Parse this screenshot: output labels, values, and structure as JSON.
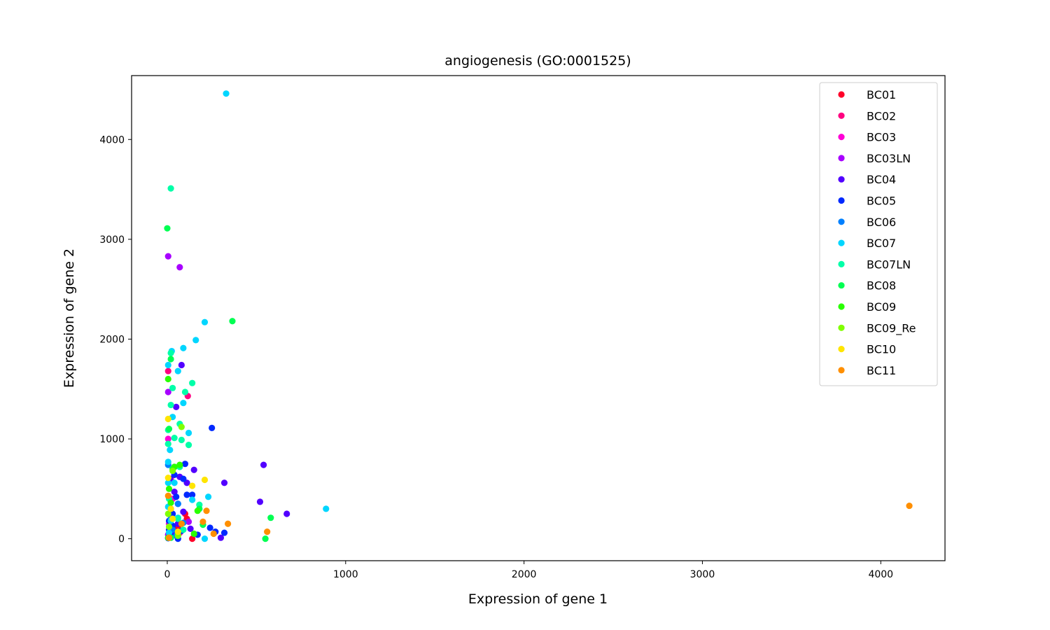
{
  "chart_data": {
    "type": "scatter",
    "title": "angiogenesis (GO:0001525)",
    "xlabel": "Expression of gene 1",
    "ylabel": "Expression of gene 2",
    "xlim": [
      -200,
      4360
    ],
    "ylim": [
      -220,
      4640
    ],
    "xticks": [
      0,
      1000,
      2000,
      3000,
      4000
    ],
    "yticks": [
      0,
      1000,
      2000,
      3000,
      4000
    ],
    "grid": false,
    "legend_position": "top-right",
    "series": [
      {
        "name": "BC01",
        "color": "#ff0029",
        "points": [
          [
            100,
            250
          ],
          [
            140,
            0
          ],
          [
            110,
            200
          ],
          [
            60,
            120
          ]
        ]
      },
      {
        "name": "BC02",
        "color": "#ff0080",
        "points": [
          [
            5,
            1680
          ],
          [
            115,
            1430
          ],
          [
            20,
            250
          ],
          [
            70,
            60
          ]
        ]
      },
      {
        "name": "BC03",
        "color": "#ff00d6",
        "points": [
          [
            5,
            1000
          ],
          [
            20,
            600
          ],
          [
            10,
            150
          ],
          [
            30,
            400
          ]
        ]
      },
      {
        "name": "BC03LN",
        "color": "#a800ff",
        "points": [
          [
            5,
            2830
          ],
          [
            70,
            2720
          ],
          [
            5,
            1470
          ],
          [
            120,
            170
          ],
          [
            20,
            300
          ],
          [
            5,
            40
          ]
        ]
      },
      {
        "name": "BC04",
        "color": "#5200ff",
        "points": [
          [
            80,
            1740
          ],
          [
            540,
            740
          ],
          [
            520,
            370
          ],
          [
            670,
            250
          ],
          [
            320,
            560
          ],
          [
            150,
            690
          ],
          [
            70,
            620
          ],
          [
            110,
            560
          ],
          [
            40,
            470
          ],
          [
            15,
            600
          ],
          [
            300,
            10
          ],
          [
            60,
            150
          ],
          [
            90,
            270
          ],
          [
            130,
            100
          ],
          [
            30,
            50
          ],
          [
            50,
            1320
          ]
        ]
      },
      {
        "name": "BC05",
        "color": "#0029ff",
        "points": [
          [
            250,
            1110
          ],
          [
            100,
            750
          ],
          [
            110,
            440
          ],
          [
            320,
            60
          ],
          [
            240,
            110
          ],
          [
            40,
            640
          ],
          [
            60,
            350
          ],
          [
            30,
            250
          ],
          [
            10,
            180
          ],
          [
            80,
            80
          ],
          [
            170,
            40
          ],
          [
            20,
            20
          ],
          [
            5,
            5
          ],
          [
            60,
            0
          ],
          [
            50,
            420
          ],
          [
            140,
            440
          ],
          [
            90,
            600
          ],
          [
            270,
            70
          ],
          [
            10,
            90
          ],
          [
            30,
            130
          ]
        ]
      },
      {
        "name": "BC06",
        "color": "#0080ff",
        "points": [
          [
            5,
            740
          ],
          [
            40,
            720
          ],
          [
            60,
            350
          ],
          [
            20,
            200
          ],
          [
            30,
            90
          ],
          [
            5,
            10
          ],
          [
            50,
            30
          ],
          [
            90,
            160
          ]
        ]
      },
      {
        "name": "BC07",
        "color": "#00d6ff",
        "points": [
          [
            330,
            4460
          ],
          [
            210,
            2170
          ],
          [
            160,
            1990
          ],
          [
            90,
            1910
          ],
          [
            25,
            1880
          ],
          [
            5,
            1740
          ],
          [
            90,
            1360
          ],
          [
            60,
            1680
          ],
          [
            30,
            1220
          ],
          [
            15,
            890
          ],
          [
            120,
            1060
          ],
          [
            5,
            770
          ],
          [
            890,
            300
          ],
          [
            230,
            420
          ],
          [
            210,
            0
          ],
          [
            140,
            390
          ],
          [
            40,
            560
          ],
          [
            5,
            560
          ],
          [
            60,
            210
          ],
          [
            20,
            180
          ],
          [
            10,
            60
          ],
          [
            5,
            320
          ]
        ]
      },
      {
        "name": "BC07LN",
        "color": "#00ffa8",
        "points": [
          [
            20,
            3510
          ],
          [
            20,
            1860
          ],
          [
            140,
            1560
          ],
          [
            100,
            1470
          ],
          [
            30,
            1510
          ],
          [
            20,
            1340
          ],
          [
            70,
            1150
          ],
          [
            5,
            1090
          ],
          [
            120,
            940
          ],
          [
            80,
            990
          ],
          [
            40,
            1010
          ],
          [
            5,
            950
          ],
          [
            70,
            720
          ],
          [
            180,
            340
          ],
          [
            60,
            200
          ],
          [
            10,
            400
          ],
          [
            90,
            90
          ],
          [
            20,
            10
          ]
        ]
      },
      {
        "name": "BC08",
        "color": "#00ff52",
        "points": [
          [
            0,
            3110
          ],
          [
            365,
            2180
          ],
          [
            20,
            1800
          ],
          [
            580,
            210
          ],
          [
            550,
            0
          ],
          [
            180,
            300
          ],
          [
            200,
            140
          ],
          [
            10,
            1100
          ],
          [
            30,
            700
          ],
          [
            60,
            50
          ],
          [
            20,
            10
          ]
        ]
      },
      {
        "name": "BC09",
        "color": "#29ff00",
        "points": [
          [
            5,
            1600
          ],
          [
            150,
            50
          ],
          [
            170,
            280
          ],
          [
            40,
            720
          ],
          [
            10,
            500
          ],
          [
            5,
            10
          ],
          [
            20,
            360
          ],
          [
            70,
            740
          ]
        ]
      },
      {
        "name": "BC09_Re",
        "color": "#80ff00",
        "points": [
          [
            80,
            1120
          ],
          [
            30,
            680
          ],
          [
            5,
            250
          ],
          [
            10,
            120
          ],
          [
            60,
            30
          ]
        ]
      },
      {
        "name": "BC10",
        "color": "#ffe500",
        "points": [
          [
            5,
            1200
          ],
          [
            210,
            590
          ],
          [
            5,
            610
          ],
          [
            140,
            530
          ],
          [
            10,
            10
          ],
          [
            30,
            200
          ],
          [
            60,
            70
          ],
          [
            20,
            300
          ]
        ]
      },
      {
        "name": "BC11",
        "color": "#ff8f00",
        "points": [
          [
            4160,
            330
          ],
          [
            340,
            150
          ],
          [
            560,
            70
          ],
          [
            220,
            280
          ],
          [
            260,
            50
          ],
          [
            200,
            170
          ],
          [
            80,
            150
          ],
          [
            5,
            430
          ],
          [
            10,
            10
          ]
        ]
      }
    ]
  }
}
